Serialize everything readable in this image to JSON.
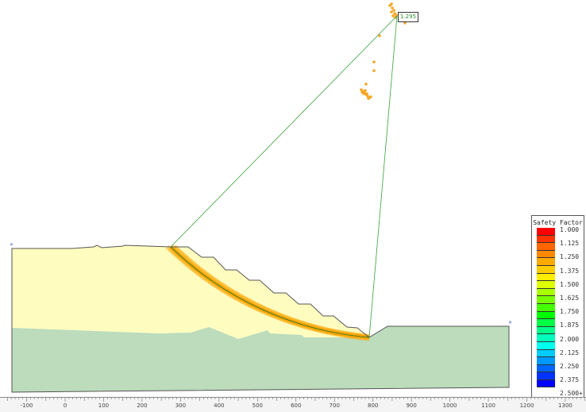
{
  "critical_surface": {
    "safety_factor": "1.295",
    "line_color": "#3aa03a"
  },
  "materials": [
    {
      "color": "#fffcc0"
    },
    {
      "color": "#bcdcbc"
    }
  ],
  "legend": {
    "title": "Safety Factor",
    "labels": [
      "1.000",
      "1.125",
      "1.250",
      "1.375",
      "1.500",
      "1.625",
      "1.750",
      "1.875",
      "2.000",
      "2.125",
      "2.250",
      "2.375",
      "2.500+"
    ],
    "colors": [
      "#ff0000",
      "#ff3300",
      "#ff6600",
      "#ff8800",
      "#ffaa00",
      "#ffcc00",
      "#ffee00",
      "#ddff00",
      "#aaff00",
      "#77ff00",
      "#44ff00",
      "#00ff00",
      "#00ff44",
      "#00ff88",
      "#00ffbb",
      "#00ffee",
      "#00ccff",
      "#0099ff",
      "#0066ff",
      "#0033ff",
      "#0000ff"
    ]
  },
  "ruler": {
    "labels": [
      "-100",
      "0",
      "100",
      "200",
      "300",
      "400",
      "500",
      "600",
      "700",
      "800",
      "900",
      "1000",
      "1100",
      "1200",
      "1300"
    ]
  },
  "slip_surface_color": "#ffa500"
}
